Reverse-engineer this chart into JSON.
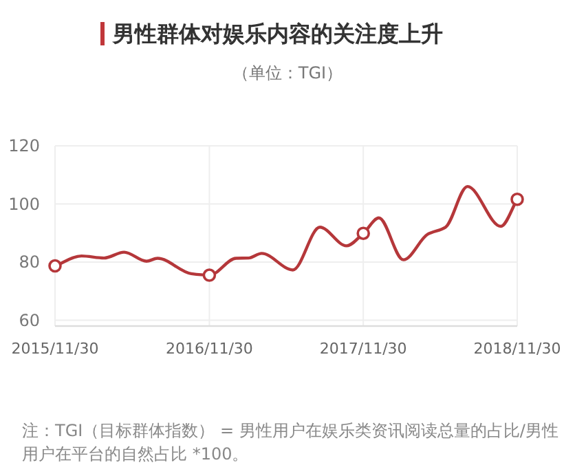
{
  "chart_data": {
    "type": "line",
    "title": "男性群体对娱乐内容的关注度上升",
    "subtitle": "（单位：TGI）",
    "x": [
      "2015-11-30",
      "2016-02-01",
      "2016-03-25",
      "2016-05-12",
      "2016-07-04",
      "2016-07-30",
      "2016-10-18",
      "2016-11-30",
      "2017-02-01",
      "2017-03-03",
      "2017-04-03",
      "2017-06-16",
      "2017-08-19",
      "2017-10-21",
      "2017-11-30",
      "2018-01-06",
      "2018-03-05",
      "2018-05-02",
      "2018-06-13",
      "2018-08-04",
      "2018-10-22",
      "2018-11-30"
    ],
    "series": [
      {
        "color": "#b5373a",
        "values": [
          78.7,
          82.1,
          81.4,
          83.4,
          80.3,
          81.3,
          76,
          75.5,
          81.3,
          81.4,
          83,
          77.3,
          92,
          85.6,
          89.9,
          95.2,
          80.8,
          89.6,
          92,
          106,
          92.3,
          101.6
        ]
      },
      {
        "type": "scatter",
        "marker": "circle",
        "color": "#b5373a",
        "x": [
          "2015-11-30",
          "2016-11-30",
          "2017-11-30",
          "2018-11-30"
        ],
        "values": [
          78.7,
          75.5,
          89.9,
          101.6
        ]
      }
    ],
    "xlim": [
      "2015-11-30",
      "2018-11-30"
    ],
    "xticks": [
      {
        "value": "2015-11-30",
        "label": "2015/11/30"
      },
      {
        "value": "2016-11-30",
        "label": "2016/11/30"
      },
      {
        "value": "2017-11-30",
        "label": "2017/11/30"
      },
      {
        "value": "2018-11-30",
        "label": "2018/11/30"
      }
    ],
    "ylim": [
      58,
      120
    ],
    "yticks": [
      60,
      80,
      100,
      120
    ],
    "grid": true,
    "line_style": "solid",
    "annotations": [
      "注：TGI（目标群体指数） = 男性用户在娱乐类资讯阅读总量的占比/男性用户在平台的自然占比 *100。"
    ]
  }
}
